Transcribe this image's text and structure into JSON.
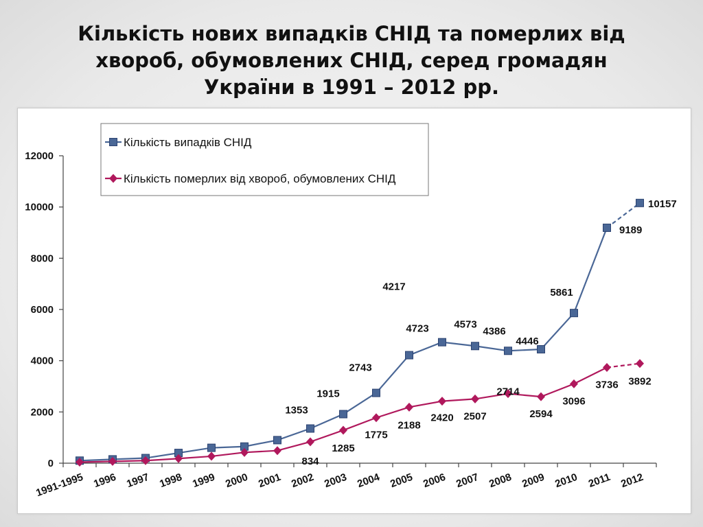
{
  "slide": {
    "title_lines": [
      "Кількість нових випадків СНІД та померлих від",
      "хвороб, обумовлених СНІД, серед громадян",
      "України в 1991 – 2012 рр."
    ]
  },
  "chart_data": {
    "type": "line",
    "categories": [
      "1991-1995",
      "1996",
      "1997",
      "1998",
      "1999",
      "2000",
      "2001",
      "2002",
      "2003",
      "2004",
      "2005",
      "2006",
      "2007",
      "2008",
      "2009",
      "2010",
      "2011",
      "2012"
    ],
    "series": [
      {
        "name": "Кількість випадків СНІД",
        "color": "#4a6796",
        "marker": "square",
        "values": [
          100,
          150,
          200,
          400,
          600,
          650,
          900,
          1353,
          1915,
          2743,
          4217,
          4723,
          4573,
          4386,
          4446,
          5861,
          9189,
          10157
        ],
        "labels": [
          "",
          "",
          "",
          "",
          "",
          "",
          "",
          "1353",
          "1915",
          "2743",
          "4217",
          "4723",
          "4573",
          "4386",
          "4446",
          "5861",
          "9189",
          "10157"
        ],
        "dashed_last_segment": true
      },
      {
        "name": "Кількість померлих від хвороб, обумовлених СНІД",
        "color": "#b0185c",
        "marker": "diamond",
        "values": [
          40,
          70,
          100,
          180,
          270,
          420,
          490,
          834,
          1285,
          1775,
          2188,
          2420,
          2507,
          2714,
          2594,
          3096,
          3736,
          3892
        ],
        "labels": [
          "",
          "",
          "",
          "",
          "",
          "",
          "",
          "834",
          "1285",
          "1775",
          "2188",
          "2420",
          "2507",
          "2714",
          "2594",
          "3096",
          "3736",
          "3892"
        ],
        "dashed_last_segment": true
      }
    ],
    "ylim": [
      0,
      12000
    ],
    "yticks": [
      0,
      2000,
      4000,
      6000,
      8000,
      10000,
      12000
    ],
    "xlabel": "",
    "ylabel": "",
    "grid": false,
    "legend_position": "top-left"
  }
}
